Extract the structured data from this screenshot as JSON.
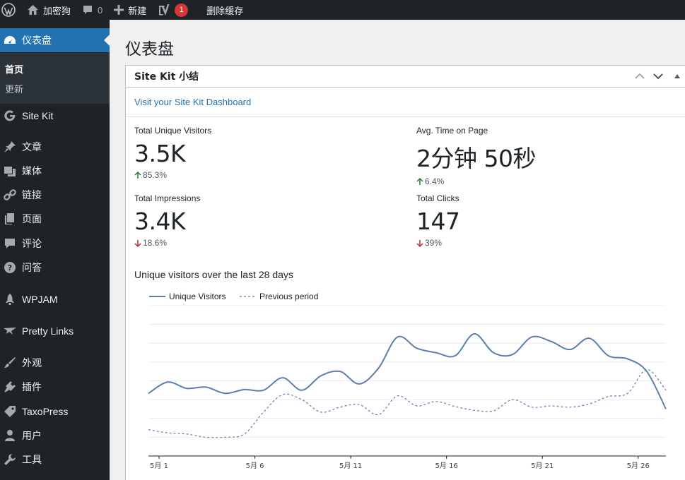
{
  "admin_bar": {
    "site_name": "加密狗",
    "comments_count": "0",
    "new_label": "新建",
    "yoast_badge": "1",
    "purge_cache_label": "删除缓存"
  },
  "sidebar": {
    "dashboard": "仪表盘",
    "submenu": [
      "首页",
      "更新"
    ],
    "items": [
      "Site Kit",
      "文章",
      "媒体",
      "链接",
      "页面",
      "评论",
      "问答",
      "WPJAM",
      "Pretty Links",
      "外观",
      "插件",
      "TaxoPress",
      "用户",
      "工具"
    ]
  },
  "page": {
    "title": "仪表盘"
  },
  "widget": {
    "title": "Site Kit 小结",
    "dashboard_link": "Visit your Site Kit Dashboard",
    "metrics": [
      {
        "label": "Total Unique Visitors",
        "value": "3.5K",
        "change": "85.3%",
        "direction": "up"
      },
      {
        "label": "Avg. Time on Page",
        "value": "2分钟 50秒",
        "change": "6.4%",
        "direction": "up"
      },
      {
        "label": "Total Impressions",
        "value": "3.4K",
        "change": "18.6%",
        "direction": "down"
      },
      {
        "label": "Total Clicks",
        "value": "147",
        "change": "39%",
        "direction": "down"
      }
    ],
    "chart_title": "Unique visitors over the last 28 days"
  },
  "colors": {
    "up": "#2e7d32",
    "down": "#c62828",
    "accent": "#2271b1",
    "series": "#5b7db1"
  },
  "chart_data": {
    "type": "line",
    "x": [
      "5月 1",
      "5月 2",
      "5月 3",
      "5月 4",
      "5月 5",
      "5月 6",
      "5月 7",
      "5月 8",
      "5月 9",
      "5月 10",
      "5月 11",
      "5月 12",
      "5月 13",
      "5月 14",
      "5月 15",
      "5月 16",
      "5月 17",
      "5月 18",
      "5月 19",
      "5月 20",
      "5月 21",
      "5月 22",
      "5月 23",
      "5月 24",
      "5月 25",
      "5月 26",
      "5月 27",
      "5月 28"
    ],
    "tick_labels": [
      "5月 1",
      "5月 6",
      "5月 11",
      "5月 16",
      "5月 21",
      "5月 26"
    ],
    "series": [
      {
        "name": "Unique Visitors",
        "style": "solid",
        "values": [
          100,
          118,
          108,
          110,
          100,
          106,
          105,
          125,
          105,
          128,
          135,
          115,
          140,
          190,
          172,
          165,
          160,
          195,
          165,
          162,
          190,
          183,
          170,
          188,
          160,
          155,
          135,
          75
        ]
      },
      {
        "name": "Previous period",
        "style": "dashed",
        "values": [
          42,
          37,
          35,
          30,
          30,
          35,
          70,
          98,
          90,
          70,
          78,
          82,
          66,
          96,
          80,
          87,
          79,
          73,
          72,
          90,
          78,
          80,
          78,
          83,
          95,
          100,
          138,
          105
        ]
      }
    ],
    "ylim": [
      0,
      240
    ],
    "grid": true,
    "legend": "top-left"
  }
}
